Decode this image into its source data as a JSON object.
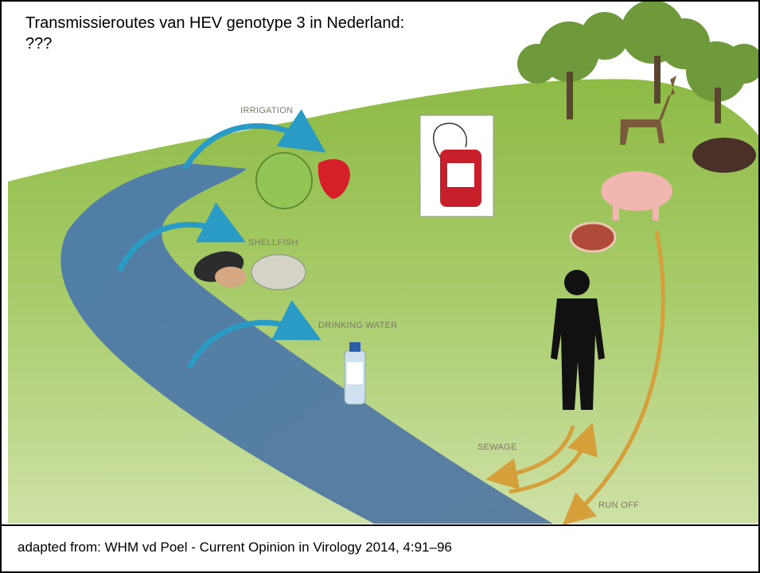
{
  "title": "Transmissieroutes van HEV genotype 3 in Nederland: ???",
  "route_labels": [
    "IRRIGATION",
    "SHELLFISH",
    "DRINKING WATER",
    "SEWAGE",
    "RUN OFF"
  ],
  "footer": "adapted from:  WHM vd Poel - Current Opinion in Virology 2014, 4:91–96"
}
